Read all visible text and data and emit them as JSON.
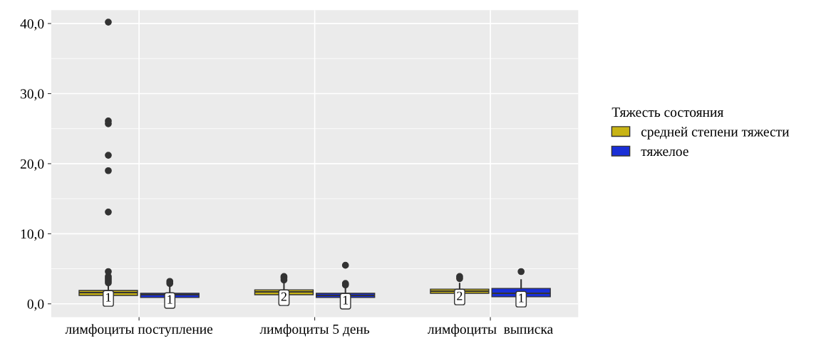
{
  "chart_data": {
    "type": "box",
    "categories": [
      "лимфоциты поступление",
      "лимфоциты 5 день",
      "лимфоциты  выписка"
    ],
    "legend_title": "Тяжесть состояния",
    "series": [
      {
        "name": "средней степени тяжести",
        "color": "#c8b414",
        "value_labels": [
          "1",
          "2",
          "2"
        ],
        "boxes": [
          {
            "q1": 1.2,
            "median": 1.6,
            "q3": 1.9,
            "high": 2.8,
            "outliers": [
              40.2,
              26.1,
              25.7,
              21.2,
              19.0,
              13.1,
              4.6,
              3.9,
              3.6,
              3.3,
              3.0
            ]
          },
          {
            "q1": 1.3,
            "median": 1.7,
            "q3": 2.0,
            "high": 2.9,
            "outliers": [
              3.9,
              3.7,
              3.4
            ]
          },
          {
            "q1": 1.5,
            "median": 1.8,
            "q3": 2.1,
            "high": 2.9,
            "outliers": [
              3.9,
              3.6
            ]
          }
        ]
      },
      {
        "name": "тяжелое",
        "color": "#1a2fd6",
        "value_labels": [
          "1",
          "1",
          "1"
        ],
        "boxes": [
          {
            "q1": 0.9,
            "median": 1.3,
            "q3": 1.5,
            "high": 2.4,
            "outliers": [
              3.2,
              2.9
            ]
          },
          {
            "q1": 0.9,
            "median": 1.2,
            "q3": 1.5,
            "high": 2.2,
            "outliers": [
              5.5,
              2.9,
              2.7
            ]
          },
          {
            "q1": 1.0,
            "median": 1.5,
            "q3": 2.2,
            "high": 3.4,
            "outliers": [
              4.6
            ]
          }
        ]
      }
    ],
    "ylim": [
      -1.9,
      41.9
    ],
    "yticks": [
      {
        "value": 0,
        "label": "0,0"
      },
      {
        "value": 10,
        "label": "10,0"
      },
      {
        "value": 20,
        "label": "20,0"
      },
      {
        "value": 30,
        "label": "30,0"
      },
      {
        "value": 40,
        "label": "40,0"
      }
    ],
    "grid": true,
    "legend": "right"
  }
}
